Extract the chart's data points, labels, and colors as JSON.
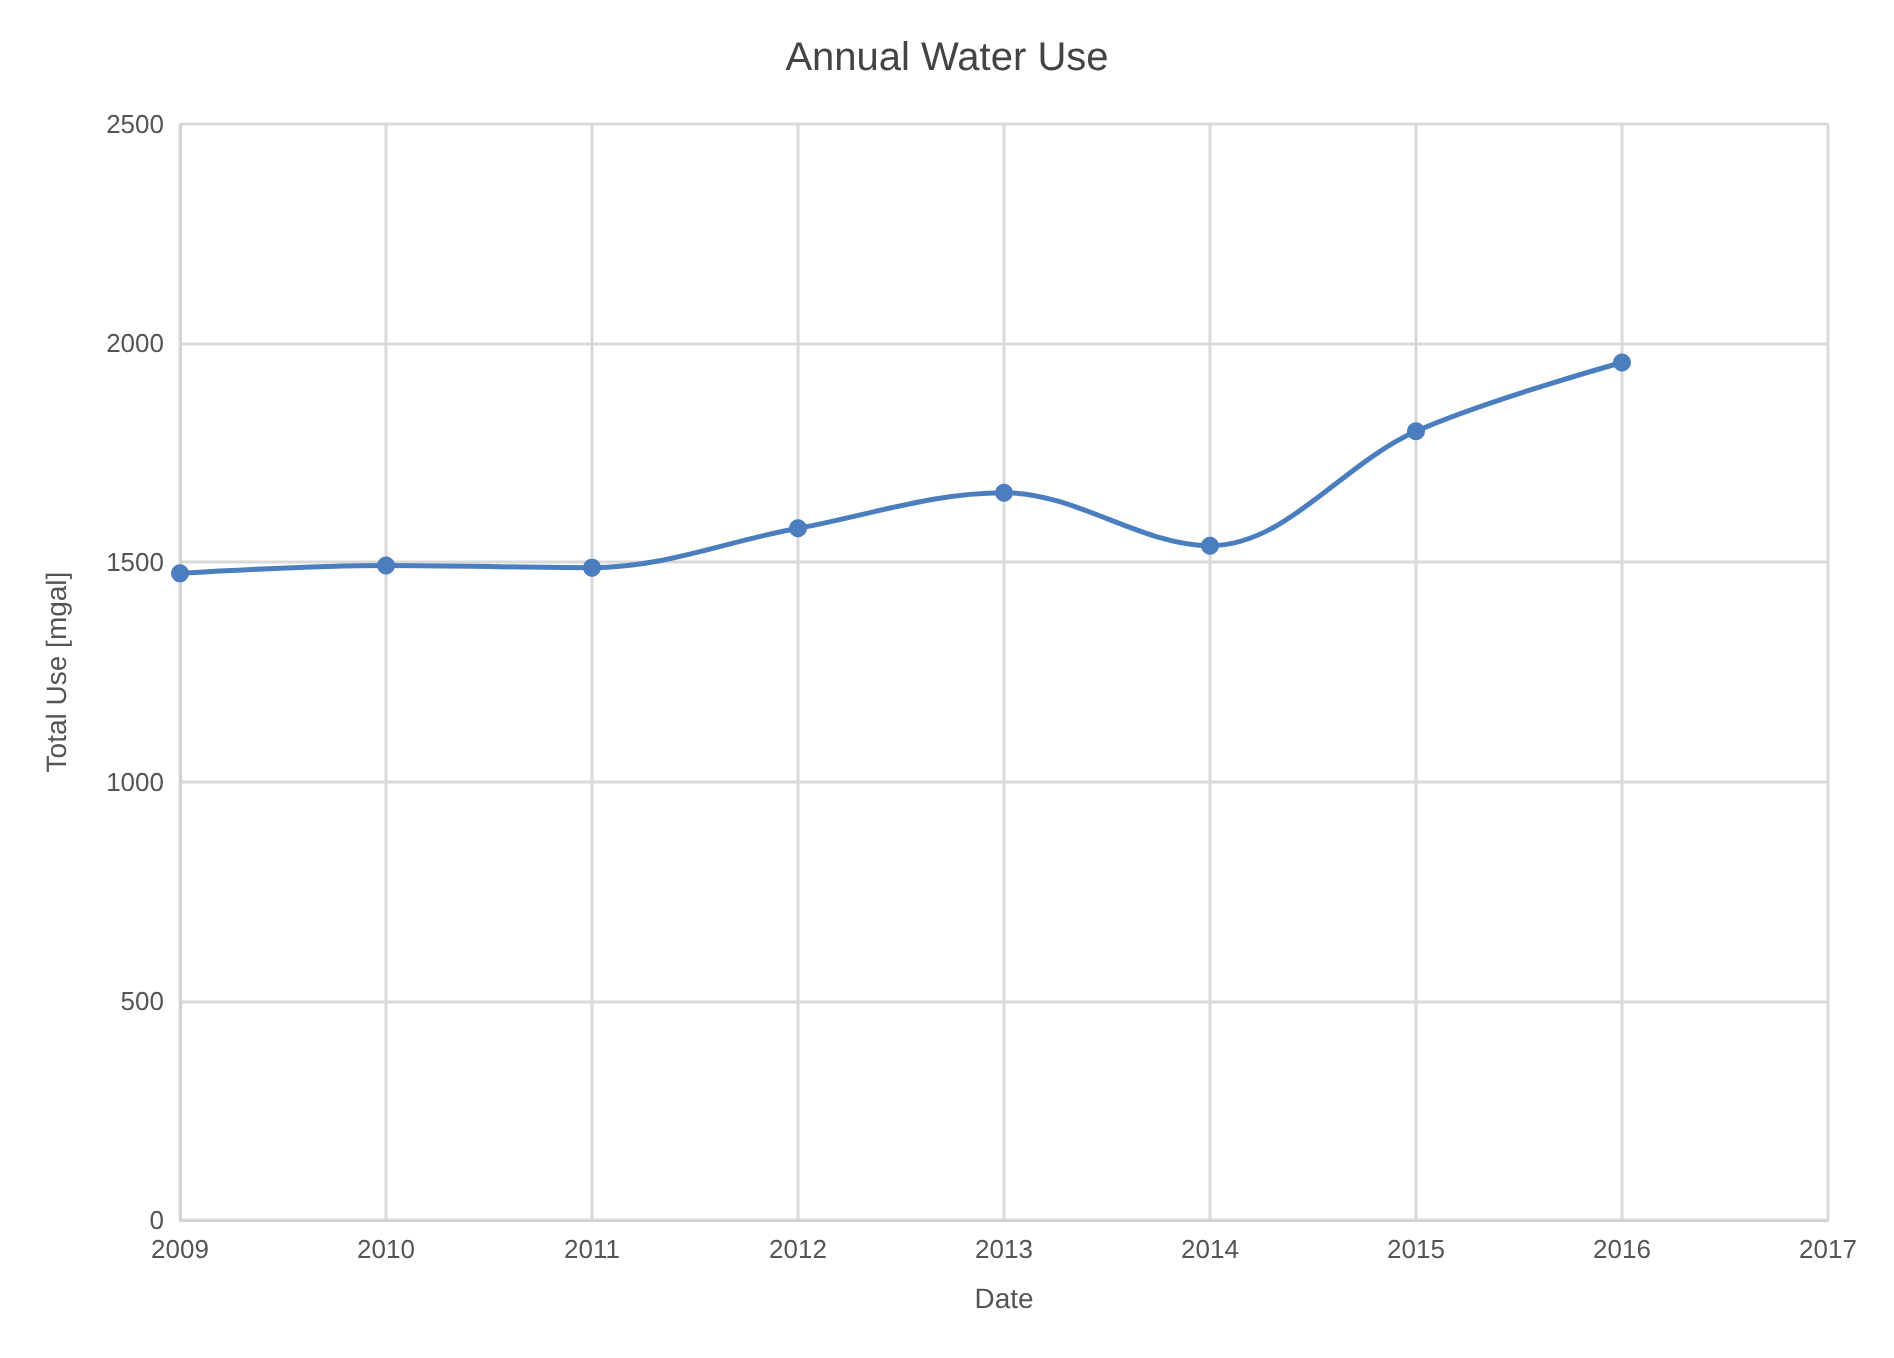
{
  "chart_data": {
    "type": "line",
    "title": "Annual Water Use",
    "xlabel": "Date",
    "ylabel": "Total Use [mgal]",
    "x": [
      2009,
      2010,
      2011,
      2012,
      2013,
      2014,
      2015,
      2016
    ],
    "series": [
      {
        "color": "#4a7ebf",
        "values": [
          1475,
          1493,
          1488,
          1578,
          1659,
          1538,
          1799,
          1956
        ]
      }
    ],
    "xlim": [
      2009,
      2017
    ],
    "xticks": [
      2009,
      2010,
      2011,
      2012,
      2013,
      2014,
      2015,
      2016,
      2017
    ],
    "ylim": [
      0,
      2500
    ],
    "yticks": [
      0,
      500,
      1000,
      1500,
      2000,
      2500
    ],
    "grid": true,
    "marker": "circle",
    "line_style": "solid"
  }
}
